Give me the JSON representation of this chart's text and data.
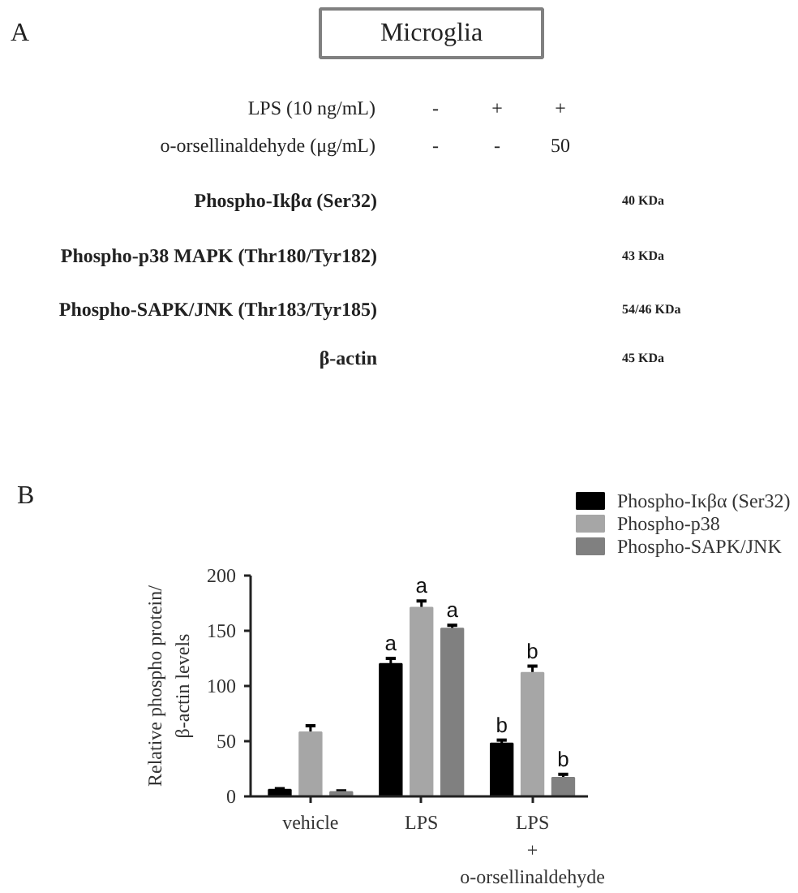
{
  "chart_data": [
    {
      "type": "other",
      "title": "Microglia",
      "annotations": [
        "A",
        "LPS (10 ng/mL)",
        "-",
        "+",
        "+",
        "o-orsellinaldehyde (μg/mL)",
        "-",
        "-",
        "50",
        "Phospho-Ikβα (Ser32)",
        "40 KDa",
        "Phospho-p38 MAPK (Thr180/Tyr182)",
        "43 KDa",
        "Phospho-SAPK/JNK (Thr183/Tyr185)",
        "54/46 KDa",
        "β-actin",
        "45 KDa"
      ]
    },
    {
      "type": "bar",
      "ylabel": "Relative phospho protein/\nβ-actin levels",
      "annotations": [
        "B"
      ],
      "categories": [
        "vehicle",
        "LPS",
        "LPS\n+\no-orsellinaldehyde"
      ],
      "ylim": [
        0,
        200
      ],
      "yticks": [
        0,
        50,
        100,
        150,
        200
      ],
      "legend": "top right",
      "series": [
        {
          "name": "Phospho-Iκβα (Ser32)",
          "color": "#000000",
          "values": [
            6,
            120,
            48
          ],
          "errors": [
            1,
            5,
            3
          ],
          "value_labels": [
            null,
            "a",
            "b"
          ]
        },
        {
          "name": "Phospho-p38",
          "color": "#a6a6a6",
          "values": [
            58,
            171,
            112
          ],
          "errors": [
            6,
            6,
            6
          ],
          "value_labels": [
            null,
            "a",
            "b"
          ]
        },
        {
          "name": "Phospho-SAPK/JNK",
          "color": "#808080",
          "values": [
            4,
            152,
            17
          ],
          "errors": [
            1,
            3,
            3
          ],
          "value_labels": [
            null,
            "a",
            "b"
          ]
        }
      ]
    }
  ]
}
